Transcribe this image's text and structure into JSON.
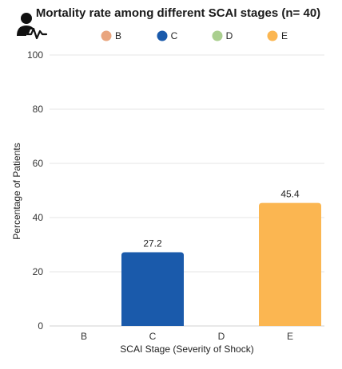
{
  "chart_data": {
    "type": "bar",
    "title": "Mortality rate among different SCAI stages (n= 40)",
    "xlabel": "SCAI Stage (Severity of Shock)",
    "ylabel": "Percentage of Patients",
    "categories": [
      "B",
      "C",
      "D",
      "E"
    ],
    "values": [
      null,
      27.2,
      null,
      45.4
    ],
    "data_labels": [
      "",
      "27.2",
      "",
      "45.4"
    ],
    "colors": [
      "#e9a57e",
      "#1a5aab",
      "#aacf8f",
      "#fbb651"
    ],
    "ylim": [
      0,
      100
    ],
    "yticks": [
      0,
      20,
      40,
      60,
      80,
      100
    ],
    "grid": true,
    "legend": {
      "placement": "top-center",
      "entries": [
        "B",
        "C",
        "D",
        "E"
      ]
    }
  },
  "icon": "patient-monitor-icon"
}
